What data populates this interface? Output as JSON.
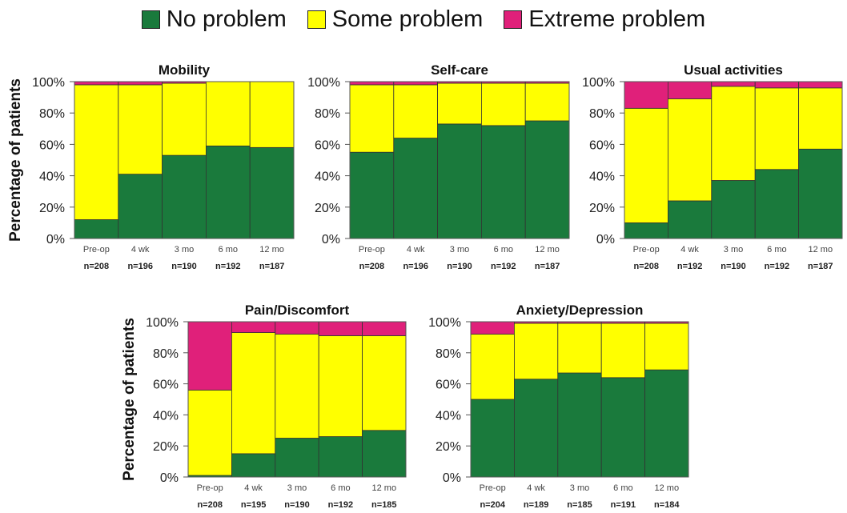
{
  "legend": [
    {
      "label": "No problem",
      "color": "#1a7a3c"
    },
    {
      "label": "Some problem",
      "color": "#ffff00"
    },
    {
      "label": "Extreme problem",
      "color": "#e0207a"
    }
  ],
  "ylabel": "Percentage of patients",
  "chart_data": [
    {
      "type": "bar",
      "stacked": true,
      "title": "Mobility",
      "ylabel": "Percentage of patients",
      "ylim": [
        0,
        100
      ],
      "yticks": [
        "0%",
        "20%",
        "40%",
        "60%",
        "80%",
        "100%"
      ],
      "categories": [
        "Pre-op",
        "4 wk",
        "3 mo",
        "6 mo",
        "12 mo"
      ],
      "n_labels": [
        "n=208",
        "n=196",
        "n=190",
        "n=192",
        "n=187"
      ],
      "series": [
        {
          "name": "No problem",
          "values": [
            12,
            41,
            53,
            59,
            58
          ]
        },
        {
          "name": "Some problem",
          "values": [
            86,
            57,
            46,
            41,
            42
          ]
        },
        {
          "name": "Extreme problem",
          "values": [
            2,
            2,
            1,
            0,
            0
          ]
        }
      ]
    },
    {
      "type": "bar",
      "stacked": true,
      "title": "Self-care",
      "ylim": [
        0,
        100
      ],
      "yticks": [
        "0%",
        "20%",
        "40%",
        "60%",
        "80%",
        "100%"
      ],
      "categories": [
        "Pre-op",
        "4 wk",
        "3 mo",
        "6 mo",
        "12 mo"
      ],
      "n_labels": [
        "n=208",
        "n=196",
        "n=190",
        "n=192",
        "n=187"
      ],
      "series": [
        {
          "name": "No problem",
          "values": [
            55,
            64,
            73,
            72,
            75
          ]
        },
        {
          "name": "Some problem",
          "values": [
            43,
            34,
            26,
            27,
            24
          ]
        },
        {
          "name": "Extreme problem",
          "values": [
            2,
            2,
            1,
            1,
            1
          ]
        }
      ]
    },
    {
      "type": "bar",
      "stacked": true,
      "title": "Usual activities",
      "ylim": [
        0,
        100
      ],
      "yticks": [
        "0%",
        "20%",
        "40%",
        "60%",
        "80%",
        "100%"
      ],
      "categories": [
        "Pre-op",
        "4 wk",
        "3 mo",
        "6 mo",
        "12 mo"
      ],
      "n_labels": [
        "n=208",
        "n=192",
        "n=190",
        "n=192",
        "n=187"
      ],
      "series": [
        {
          "name": "No problem",
          "values": [
            10,
            24,
            37,
            44,
            57
          ]
        },
        {
          "name": "Some problem",
          "values": [
            73,
            65,
            60,
            52,
            39
          ]
        },
        {
          "name": "Extreme problem",
          "values": [
            17,
            11,
            3,
            4,
            4
          ]
        }
      ]
    },
    {
      "type": "bar",
      "stacked": true,
      "title": "Pain/Discomfort",
      "ylabel": "Percentage of patients",
      "ylim": [
        0,
        100
      ],
      "yticks": [
        "0%",
        "20%",
        "40%",
        "60%",
        "80%",
        "100%"
      ],
      "categories": [
        "Pre-op",
        "4 wk",
        "3 mo",
        "6 mo",
        "12 mo"
      ],
      "n_labels": [
        "n=208",
        "n=195",
        "n=190",
        "n=192",
        "n=185"
      ],
      "series": [
        {
          "name": "No problem",
          "values": [
            1,
            15,
            25,
            26,
            30
          ]
        },
        {
          "name": "Some problem",
          "values": [
            55,
            78,
            67,
            65,
            61
          ]
        },
        {
          "name": "Extreme problem",
          "values": [
            44,
            7,
            8,
            9,
            9
          ]
        }
      ]
    },
    {
      "type": "bar",
      "stacked": true,
      "title": "Anxiety/Depression",
      "ylim": [
        0,
        100
      ],
      "yticks": [
        "0%",
        "20%",
        "40%",
        "60%",
        "80%",
        "100%"
      ],
      "categories": [
        "Pre-op",
        "4 wk",
        "3 mo",
        "6 mo",
        "12 mo"
      ],
      "n_labels": [
        "n=204",
        "n=189",
        "n=185",
        "n=191",
        "n=184"
      ],
      "series": [
        {
          "name": "No problem",
          "values": [
            50,
            63,
            67,
            64,
            69
          ]
        },
        {
          "name": "Some problem",
          "values": [
            42,
            36,
            32,
            35,
            30
          ]
        },
        {
          "name": "Extreme problem",
          "values": [
            8,
            1,
            1,
            1,
            1
          ]
        }
      ]
    }
  ]
}
